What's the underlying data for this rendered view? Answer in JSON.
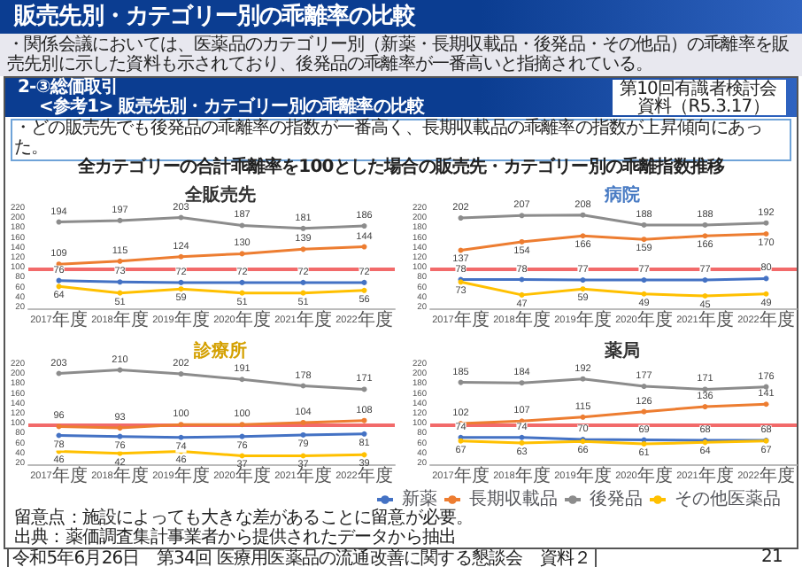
{
  "chart_data": [
    {
      "type": "line",
      "title": "全販売先",
      "categories": [
        "2017年度",
        "2018年度",
        "2019年度",
        "2020年度",
        "2021年度",
        "2022年度"
      ],
      "series": [
        {
          "color": "#4472c4",
          "values": [
            76,
            73,
            72,
            72,
            72,
            72
          ]
        },
        {
          "color": "#ed7d31",
          "values": [
            109,
            115,
            124,
            130,
            139,
            144
          ]
        },
        {
          "color": "#8c8c8c",
          "values": [
            194,
            197,
            203,
            187,
            181,
            186
          ]
        },
        {
          "color": "#ffc000",
          "values": [
            64,
            51,
            59,
            51,
            51,
            56
          ]
        }
      ],
      "ylim": [
        20,
        220
      ],
      "yticks": [
        20,
        40,
        60,
        80,
        100,
        120,
        140,
        160,
        180,
        200,
        220
      ],
      "marker": "circle",
      "data_labels": true,
      "ref_lines": [
        {
          "axis": "y",
          "value": 100,
          "color": "#f26a6a"
        }
      ],
      "annotations": [
        "販売先別・カテゴリー別の乖離率の比較",
        "・関係会議においては、医薬品のカテゴリー別（新薬・長期収載品・後発品・その他品）の乖離率を販売先別に示した資料も示されており、後発品の乖離率が一番高いと指摘されている。",
        "2-③総価取引",
        "<参考1> 販売先別・カテゴリー別の乖離率の比較",
        "第10回有識者検討会",
        "資料（R5.3.17）",
        "・どの販売先でも後発品の乖離率の指数が一番高く、長期収載品の乖離率の指数が上昇傾向にあった。",
        "全カテゴリーの合計乖離率を100とした場合の販売先・カテゴリー別の乖離指数推移",
        "留意点：施設によっても大きな差があることに留意が必要。",
        "出典：薬価調査集計事業者から提供されたデータから抽出",
        "令和5年6月26日　第34回 医療用医薬品の流通改善に関する懇談会　資料２",
        "21"
      ]
    },
    {
      "type": "line",
      "title": "病院",
      "categories": [
        "2017年度",
        "2018年度",
        "2019年度",
        "2020年度",
        "2021年度",
        "2022年度"
      ],
      "series": [
        {
          "color": "#4472c4",
          "values": [
            78,
            78,
            77,
            77,
            77,
            80
          ]
        },
        {
          "color": "#ed7d31",
          "values": [
            137,
            154,
            166,
            159,
            166,
            170
          ]
        },
        {
          "color": "#8c8c8c",
          "values": [
            202,
            207,
            208,
            188,
            188,
            192
          ]
        },
        {
          "color": "#ffc000",
          "values": [
            73,
            47,
            59,
            49,
            45,
            49
          ]
        }
      ],
      "ylim": [
        20,
        220
      ],
      "yticks": [
        20,
        40,
        60,
        80,
        100,
        120,
        140,
        160,
        180,
        200,
        220
      ],
      "marker": "circle",
      "data_labels": true,
      "ref_lines": [
        {
          "axis": "y",
          "value": 100,
          "color": "#f26a6a"
        }
      ]
    },
    {
      "type": "line",
      "title": "診療所",
      "categories": [
        "2017年度",
        "2018年度",
        "2019年度",
        "2020年度",
        "2021年度",
        "2022年度"
      ],
      "series": [
        {
          "color": "#4472c4",
          "values": [
            78,
            76,
            74,
            76,
            79,
            81
          ]
        },
        {
          "color": "#ed7d31",
          "values": [
            96,
            93,
            100,
            100,
            104,
            108
          ]
        },
        {
          "color": "#8c8c8c",
          "values": [
            203,
            210,
            202,
            191,
            178,
            171
          ]
        },
        {
          "color": "#ffc000",
          "values": [
            46,
            42,
            46,
            37,
            37,
            39
          ]
        }
      ],
      "ylim": [
        20,
        220
      ],
      "yticks": [
        20,
        40,
        60,
        80,
        100,
        120,
        140,
        160,
        180,
        200,
        220
      ],
      "marker": "circle",
      "data_labels": true,
      "ref_lines": [
        {
          "axis": "y",
          "value": 100,
          "color": "#f26a6a"
        }
      ]
    },
    {
      "type": "line",
      "title": "薬局",
      "categories": [
        "2017年度",
        "2018年度",
        "2019年度",
        "2020年度",
        "2021年度",
        "2022年度"
      ],
      "series": [
        {
          "name": "新薬",
          "color": "#4472c4",
          "values": [
            74,
            74,
            70,
            69,
            68,
            68
          ]
        },
        {
          "name": "長期収載品",
          "color": "#ed7d31",
          "values": [
            102,
            107,
            115,
            126,
            136,
            141
          ]
        },
        {
          "name": "後発品",
          "color": "#8c8c8c",
          "values": [
            185,
            184,
            192,
            177,
            171,
            176
          ]
        },
        {
          "name": "その他医薬品",
          "color": "#ffc000",
          "values": [
            67,
            63,
            66,
            61,
            64,
            67
          ]
        }
      ],
      "ylim": [
        20,
        220
      ],
      "yticks": [
        20,
        40,
        60,
        80,
        100,
        120,
        140,
        160,
        180,
        200,
        220
      ],
      "marker": "circle",
      "data_labels": true,
      "legend": "bottom",
      "ref_lines": [
        {
          "axis": "y",
          "value": 100,
          "color": "#f26a6a"
        }
      ]
    }
  ]
}
